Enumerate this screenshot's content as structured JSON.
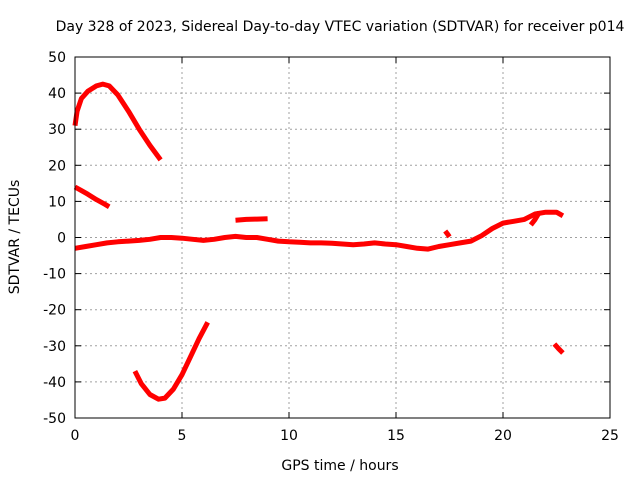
{
  "chart_data": {
    "type": "line",
    "title": "Day 328 of 2023, Sidereal Day-to-day VTEC variation (SDTVAR) for receiver p014",
    "xlabel": "GPS time / hours",
    "ylabel": "SDTVAR / TECUs",
    "xlim": [
      0,
      25
    ],
    "ylim": [
      -50,
      50
    ],
    "xticks": [
      0,
      5,
      10,
      15,
      20,
      25
    ],
    "yticks": [
      -50,
      -40,
      -30,
      -20,
      -10,
      0,
      10,
      20,
      30,
      40,
      50
    ],
    "xtick_labels": [
      "0",
      "5",
      "10",
      "15",
      "20",
      "25"
    ],
    "ytick_labels": [
      "-50",
      "-40",
      "-30",
      "-20",
      "-10",
      "0",
      "10",
      "20",
      "30",
      "40",
      "50"
    ],
    "grid": true,
    "color": "#ff0000",
    "series": [
      {
        "name": "arc-1",
        "x": [
          0,
          0.1,
          0.3,
          0.6,
          1.0,
          1.3,
          1.6,
          2.0,
          2.5,
          3.0,
          3.5,
          4.0
        ],
        "y": [
          31,
          35,
          38.5,
          40.5,
          42,
          42.5,
          42,
          39.5,
          35,
          30,
          25.5,
          21.5
        ]
      },
      {
        "name": "arc-2",
        "x": [
          0,
          0.3,
          0.6,
          1.0,
          1.4,
          1.6
        ],
        "y": [
          14,
          13,
          12,
          10.5,
          9.2,
          8.5
        ]
      },
      {
        "name": "arc-3",
        "x": [
          2.8,
          3.1,
          3.5,
          3.9,
          4.2,
          4.6,
          5.0,
          5.4,
          5.8,
          6.2
        ],
        "y": [
          -37,
          -40.5,
          -43.5,
          -44.8,
          -44.5,
          -42,
          -38,
          -33,
          -28,
          -23.5
        ]
      },
      {
        "name": "arc-4",
        "x": [
          7.5,
          8.0,
          8.5,
          9.0
        ],
        "y": [
          4.8,
          5.0,
          5.1,
          5.2
        ]
      },
      {
        "name": "arc-5",
        "x": [
          22.4,
          22.6,
          22.8
        ],
        "y": [
          -29.5,
          -30.8,
          -32
        ]
      },
      {
        "name": "arc-6",
        "x": [
          0,
          0.5,
          1.0,
          1.5,
          2.0,
          2.5,
          3.0,
          3.5,
          4.0,
          4.5,
          5.0,
          5.5,
          6.0,
          6.5,
          7.0,
          7.5,
          8.0,
          8.5,
          9.0,
          9.5,
          10.0,
          10.5,
          11.0,
          11.5,
          12.0,
          12.5,
          13.0,
          13.5,
          14.0,
          14.5,
          15.0,
          15.5,
          16.0,
          16.5,
          17.0,
          17.5,
          18.0,
          18.5,
          19.0,
          19.5,
          20.0,
          20.5,
          21.0,
          21.5,
          22.0,
          22.5,
          22.8
        ],
        "y": [
          -3,
          -2.5,
          -2,
          -1.5,
          -1.2,
          -1,
          -0.8,
          -0.5,
          0,
          0,
          -0.2,
          -0.5,
          -0.8,
          -0.5,
          0,
          0.3,
          0,
          0,
          -0.5,
          -1,
          -1.2,
          -1.3,
          -1.5,
          -1.5,
          -1.6,
          -1.8,
          -2,
          -1.8,
          -1.5,
          -1.8,
          -2,
          -2.5,
          -3,
          -3.2,
          -2.5,
          -2,
          -1.5,
          -1,
          0.5,
          2.5,
          4,
          4.5,
          5,
          6.5,
          7,
          7,
          6
        ]
      },
      {
        "name": "arc-7",
        "x": [
          17.3,
          17.4,
          17.5
        ],
        "y": [
          1.8,
          1.0,
          0.2
        ]
      },
      {
        "name": "arc-8",
        "x": [
          21.3,
          21.5,
          21.7
        ],
        "y": [
          3.5,
          5.0,
          7.0
        ]
      }
    ]
  }
}
